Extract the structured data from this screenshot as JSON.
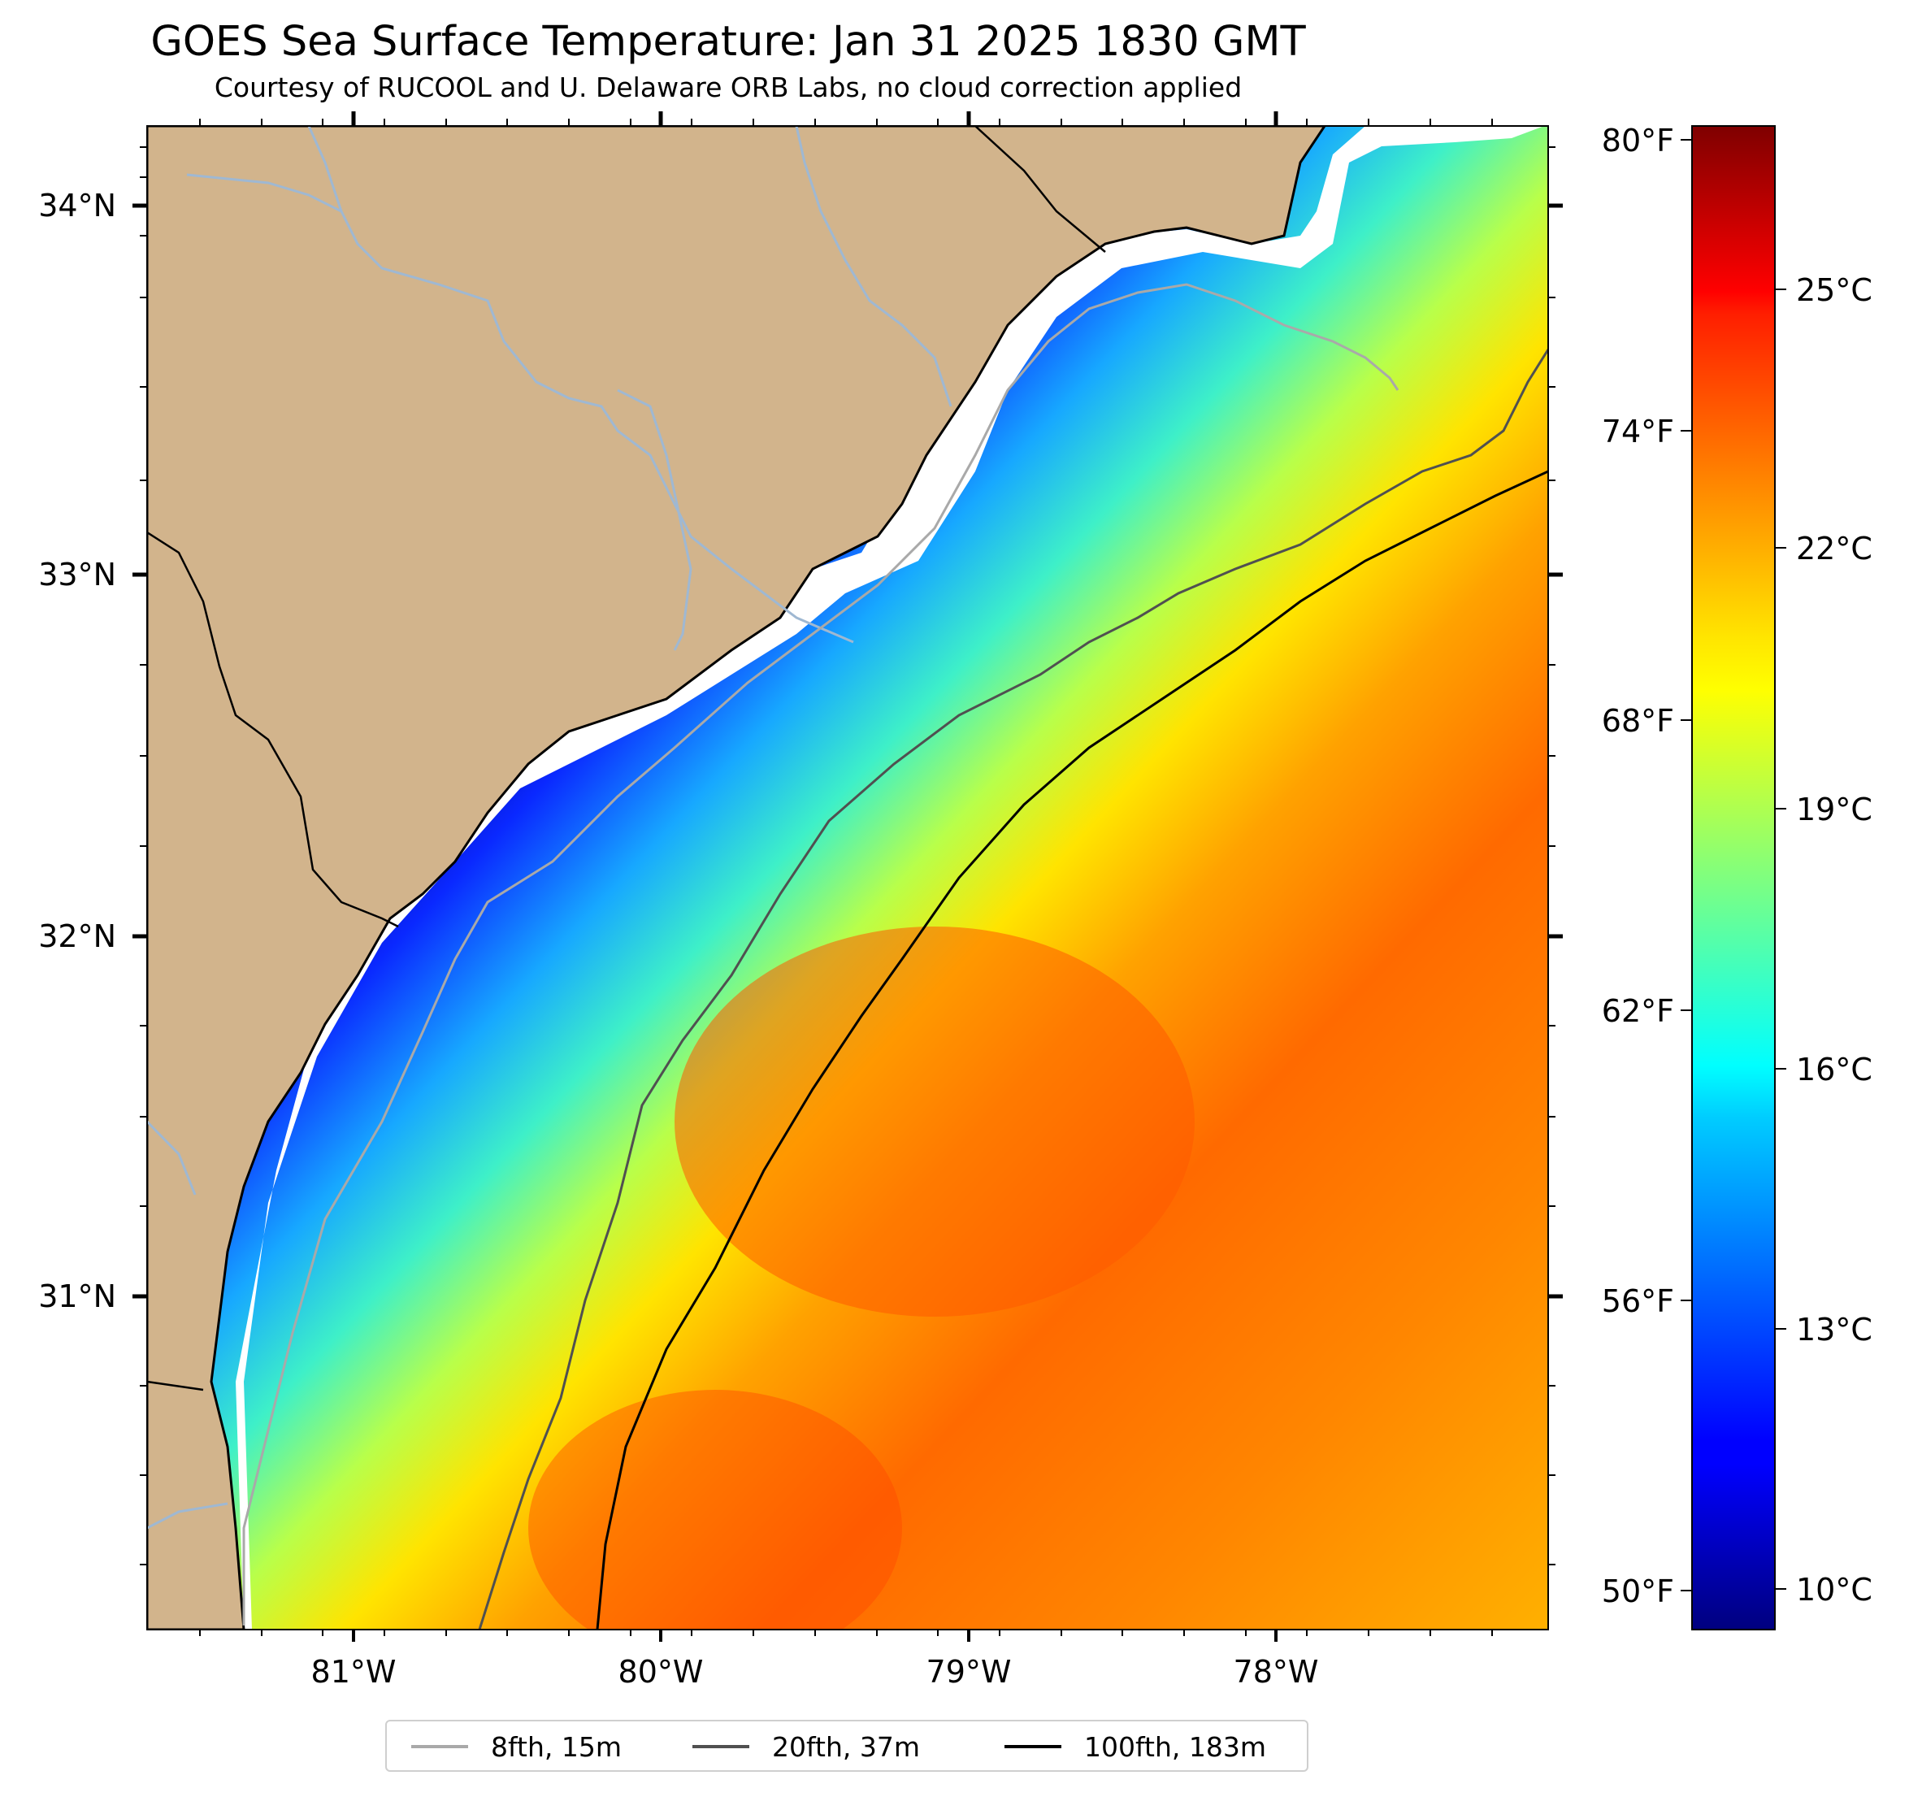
{
  "title": "GOES Sea Surface Temperature: Jan 31 2025 1830 GMT",
  "subtitle": "Courtesy of RUCOOL and U. Delaware ORB Labs, no cloud correction applied",
  "map": {
    "lon_range": [
      -81.67,
      -77.1
    ],
    "lat_range": [
      30.08,
      34.23
    ],
    "lat_labels": [
      "34°N",
      "33°N",
      "32°N",
      "31°N"
    ],
    "lon_labels": [
      "81°W",
      "80°W",
      "79°W",
      "78°W"
    ],
    "land_color": "#d2b48c",
    "river_color": "#9fb8d2"
  },
  "colorbar": {
    "fahrenheit_labels": [
      "80°F",
      "74°F",
      "68°F",
      "62°F",
      "56°F",
      "50°F"
    ],
    "celsius_labels": [
      "25°C",
      "22°C",
      "19°C",
      "16°C",
      "13°C",
      "10°C"
    ],
    "colormap": "jet",
    "range_c": [
      9.5,
      27.0
    ]
  },
  "legend": {
    "items": [
      {
        "label": "8fth, 15m",
        "color": "#a9a9a9"
      },
      {
        "label": "20fth, 37m",
        "color": "#505050"
      },
      {
        "label": "100fth, 183m",
        "color": "#000000"
      }
    ]
  }
}
